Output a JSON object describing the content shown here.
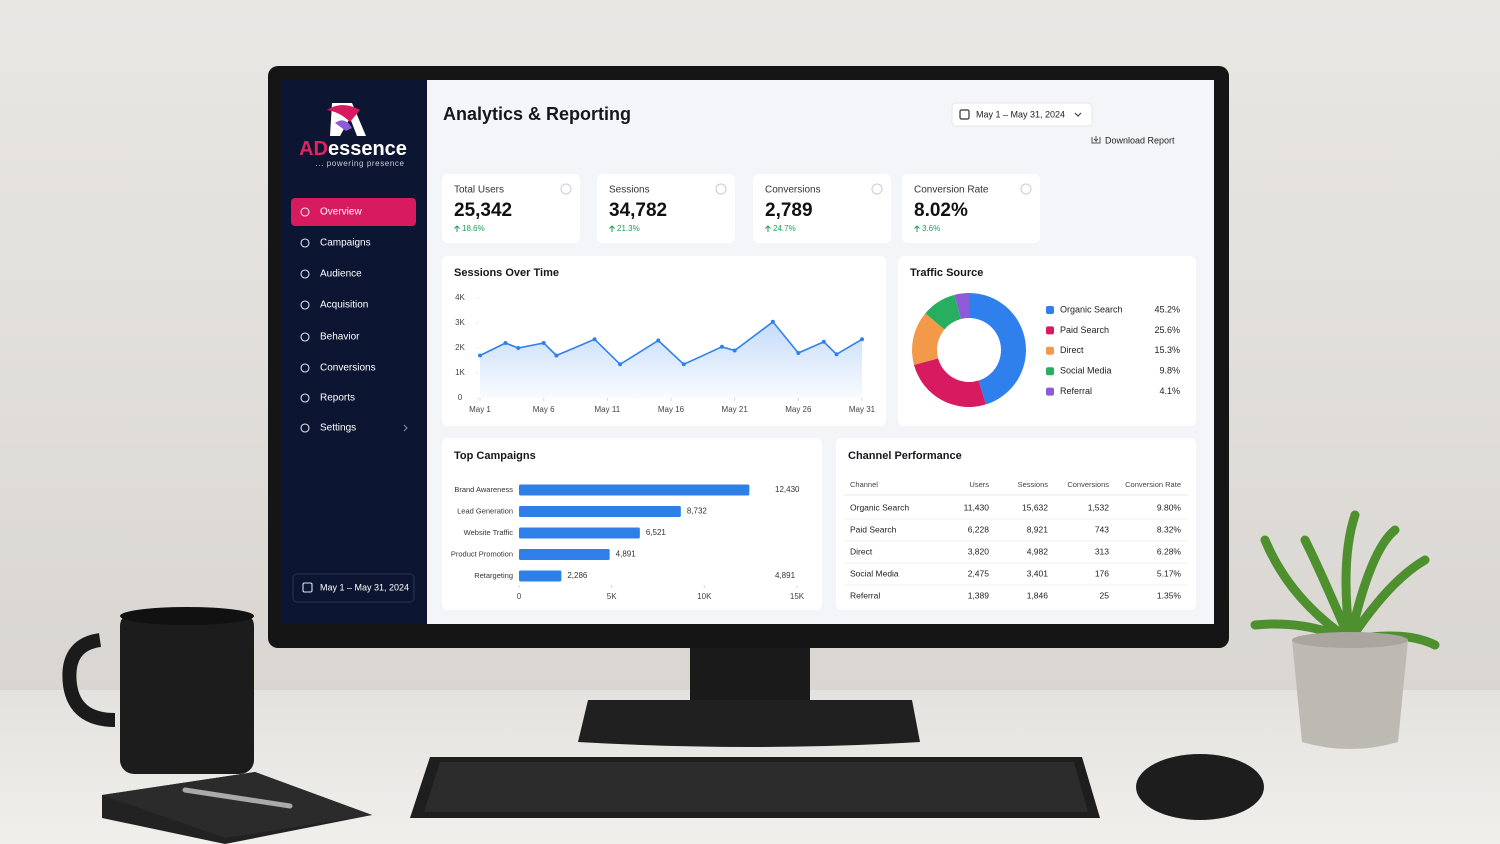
{
  "sidebar": {
    "logo_ad": "AD",
    "logo_rest": "essence",
    "tagline": "... powering presence",
    "menu": [
      "Overview",
      "Campaigns",
      "Audience",
      "Acquisition",
      "Behavior",
      "Conversions",
      "Reports",
      "Settings"
    ],
    "date_range": "May 1 – May 31, 2024"
  },
  "header": {
    "title": "Analytics & Reporting",
    "date_range": "May 1 – May 31, 2024",
    "download": "Download Report"
  },
  "kpis": [
    {
      "label": "Total Users",
      "value": "25,342",
      "change": "18.6%"
    },
    {
      "label": "Sessions",
      "value": "34,782",
      "change": "21.3%"
    },
    {
      "label": "Conversions",
      "value": "2,789",
      "change": "24.7%"
    },
    {
      "label": "Conversion Rate",
      "value": "8.02%",
      "change": "3.6%"
    }
  ],
  "chart_data": [
    {
      "type": "line",
      "title": "Sessions Over Time",
      "x": [
        1,
        3,
        4,
        6,
        7,
        10,
        12,
        15,
        17,
        20,
        21,
        24,
        26,
        28,
        29,
        31
      ],
      "values": [
        1700,
        2200,
        2000,
        2200,
        1700,
        2350,
        1350,
        2300,
        1350,
        2050,
        1900,
        3050,
        1800,
        2250,
        1750,
        2350
      ],
      "color": "#2f80ed",
      "xlim": [
        1,
        31
      ],
      "xticks": [
        {
          "value": 1,
          "label": "May 1"
        },
        {
          "value": 6,
          "label": "May 6"
        },
        {
          "value": 11,
          "label": "May 11"
        },
        {
          "value": 16,
          "label": "May 16"
        },
        {
          "value": 21,
          "label": "May 21"
        },
        {
          "value": 26,
          "label": "May 26"
        },
        {
          "value": 31,
          "label": "May 31"
        }
      ],
      "ylim": [
        0,
        4000
      ],
      "yticks": [
        0,
        {
          "value": 1000,
          "label": "1K"
        },
        {
          "value": 2000,
          "label": "2K"
        },
        {
          "value": 3000,
          "label": "3K"
        },
        {
          "value": 4000,
          "label": "4K"
        }
      ]
    },
    {
      "type": "pie",
      "title": "Traffic Source",
      "categories": [
        "Organic Search",
        "Paid Search",
        "Direct",
        "Social Media",
        "Referral"
      ],
      "values": [
        45.2,
        25.6,
        15.3,
        9.8,
        4.1
      ],
      "value_labels": [
        "45.2%",
        "25.6%",
        "15.3%",
        "9.8%",
        "4.1%"
      ],
      "colors": [
        "#2f80ed",
        "#d81b60",
        "#f2994a",
        "#27ae60",
        "#8e5bd6"
      ]
    },
    {
      "type": "hbar",
      "title": "Top Campaigns",
      "categories": [
        "Brand Awareness",
        "Lead Generation",
        "Website Traffic",
        "Product Promotion",
        "Retargeting"
      ],
      "values": [
        12430,
        8732,
        6521,
        4891,
        2286
      ],
      "value_labels": [
        "12,430",
        "8,732",
        "6,521",
        "4,891",
        "2,286"
      ],
      "annotations": [
        "4,891"
      ],
      "color": "#2f7fe8",
      "xlim": [
        0,
        15000
      ],
      "xticks": [
        0,
        {
          "value": 5000,
          "label": "5K"
        },
        {
          "value": 10000,
          "label": "10K"
        },
        {
          "value": 15000,
          "label": "15K"
        }
      ]
    }
  ],
  "table": {
    "title": "Channel Performance",
    "columns": [
      "Channel",
      "Users",
      "Sessions",
      "Conversions",
      "Conversion Rate"
    ],
    "rows": [
      [
        "Organic Search",
        "11,430",
        "15,632",
        "1,532",
        "9.80%"
      ],
      [
        "Paid Search",
        "6,228",
        "8,921",
        "743",
        "8.32%"
      ],
      [
        "Direct",
        "3,820",
        "4,982",
        "313",
        "6.28%"
      ],
      [
        "Social Media",
        "2,475",
        "3,401",
        "176",
        "5.17%"
      ],
      [
        "Referral",
        "1,389",
        "1,846",
        "25",
        "1.35%"
      ]
    ]
  }
}
